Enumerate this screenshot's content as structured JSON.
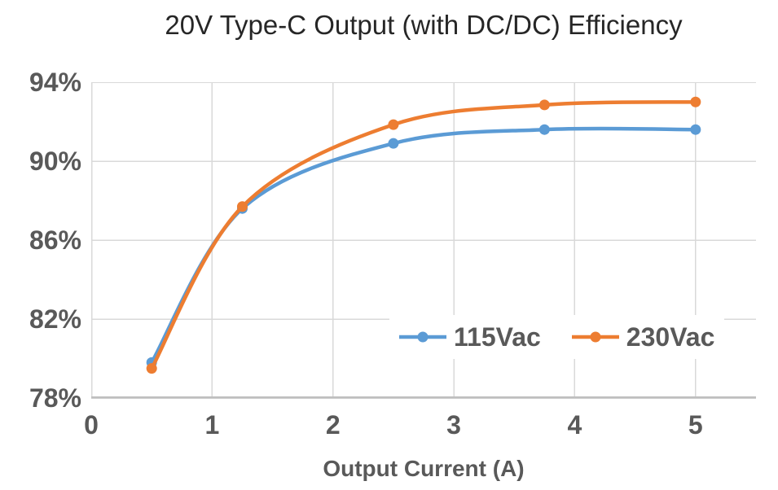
{
  "chart_data": {
    "type": "line",
    "title": "20V Type-C Output (with DC/DC) Efficiency",
    "xlabel": "Output Current (A)",
    "ylabel": "",
    "x": [
      0.5,
      1.25,
      2.5,
      3.75,
      5
    ],
    "series": [
      {
        "name": "115Vac",
        "color": "#5B9BD5",
        "values": [
          79.8,
          87.6,
          90.9,
          91.6,
          91.6
        ]
      },
      {
        "name": "230Vac",
        "color": "#ED7D31",
        "values": [
          79.5,
          87.7,
          91.85,
          92.85,
          93.0
        ]
      }
    ],
    "xlim": [
      0,
      5.5
    ],
    "ylim": [
      78,
      94
    ],
    "x_ticks": [
      0,
      1,
      2,
      3,
      4,
      5
    ],
    "x_tick_labels": [
      "0",
      "1",
      "2",
      "3",
      "4",
      "5"
    ],
    "y_ticks": [
      94,
      90,
      86,
      82,
      78
    ],
    "y_tick_labels": [
      "94%",
      "90%",
      "86%",
      "82%",
      "78%"
    ],
    "grid": true,
    "smooth": true,
    "marker": "circle",
    "legend": {
      "position": "inside-bottom-right",
      "background": "#FFFFFF"
    }
  },
  "style_colors": {
    "gridline": "#D9D9D9",
    "axis_line": "#BFBFBF",
    "tick_text": "#595959",
    "title_text": "#262626",
    "background": "#FFFFFF"
  }
}
